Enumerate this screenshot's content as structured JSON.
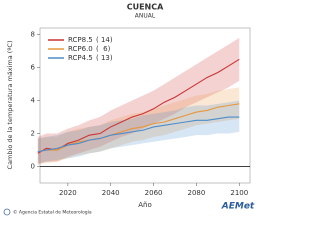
{
  "chart_data": {
    "type": "line",
    "title": "CUENCA",
    "subtitle": "ANUAL",
    "x_label": "Año",
    "y_label": "Cambio de la temperatura máxima (ºC)",
    "footer": "© Agencia Estatal de Meteorología",
    "logo": "AEMet",
    "x": [
      2006,
      2010,
      2015,
      2020,
      2025,
      2030,
      2035,
      2040,
      2045,
      2050,
      2055,
      2060,
      2065,
      2070,
      2075,
      2080,
      2085,
      2090,
      2095,
      2100
    ],
    "xlim": [
      2007,
      2105
    ],
    "xticks": [
      2020,
      2040,
      2060,
      2080,
      2100
    ],
    "ylim": [
      -1,
      8.4
    ],
    "yticks": [
      0,
      2,
      4,
      6,
      8
    ],
    "legend": "upper-left",
    "series": [
      {
        "name": "RCP8.5",
        "runs": "( 14)",
        "color": "#cc3333",
        "values": [
          0.8,
          1.1,
          1.0,
          1.4,
          1.6,
          1.9,
          2.0,
          2.4,
          2.7,
          3.0,
          3.2,
          3.5,
          3.9,
          4.2,
          4.6,
          5.0,
          5.4,
          5.7,
          6.1,
          6.5
        ],
        "lower": [
          0.1,
          0.3,
          0.3,
          0.6,
          0.8,
          1.0,
          1.2,
          1.5,
          1.8,
          2.0,
          2.3,
          2.6,
          2.9,
          3.2,
          3.6,
          3.9,
          4.2,
          4.5,
          4.8,
          5.2
        ],
        "upper": [
          1.8,
          2.0,
          2.0,
          2.3,
          2.5,
          2.8,
          3.0,
          3.4,
          3.7,
          4.0,
          4.3,
          4.6,
          5.0,
          5.4,
          5.8,
          6.2,
          6.6,
          7.0,
          7.4,
          7.8
        ]
      },
      {
        "name": "RCP6.0",
        "runs": "(  6)",
        "color": "#e8963c",
        "values": [
          0.9,
          1.0,
          1.0,
          1.3,
          1.5,
          1.6,
          1.7,
          1.9,
          2.1,
          2.3,
          2.4,
          2.6,
          2.7,
          2.9,
          3.1,
          3.3,
          3.4,
          3.6,
          3.7,
          3.8
        ],
        "lower": [
          0.2,
          0.2,
          0.3,
          0.5,
          0.7,
          0.8,
          0.9,
          1.1,
          1.3,
          1.5,
          1.6,
          1.8,
          1.9,
          2.1,
          2.3,
          2.5,
          2.6,
          2.7,
          2.8,
          2.9
        ],
        "upper": [
          1.7,
          1.8,
          1.8,
          2.1,
          2.3,
          2.4,
          2.5,
          2.8,
          3.0,
          3.2,
          3.3,
          3.5,
          3.7,
          3.9,
          4.1,
          4.3,
          4.4,
          4.6,
          4.7,
          4.8
        ]
      },
      {
        "name": "RCP4.5",
        "runs": "( 13)",
        "color": "#4a8ccc",
        "values": [
          0.9,
          1.0,
          1.1,
          1.3,
          1.4,
          1.6,
          1.7,
          1.9,
          2.0,
          2.1,
          2.2,
          2.4,
          2.5,
          2.6,
          2.7,
          2.8,
          2.8,
          2.9,
          3.0,
          3.0
        ],
        "lower": [
          0.2,
          0.3,
          0.4,
          0.5,
          0.6,
          0.8,
          0.9,
          1.1,
          1.2,
          1.3,
          1.4,
          1.5,
          1.6,
          1.7,
          1.8,
          1.9,
          1.9,
          2.0,
          2.0,
          2.1
        ],
        "upper": [
          1.7,
          1.8,
          1.9,
          2.1,
          2.2,
          2.4,
          2.5,
          2.7,
          2.8,
          2.9,
          3.1,
          3.2,
          3.3,
          3.4,
          3.6,
          3.7,
          3.7,
          3.8,
          3.9,
          4.0
        ]
      }
    ]
  }
}
